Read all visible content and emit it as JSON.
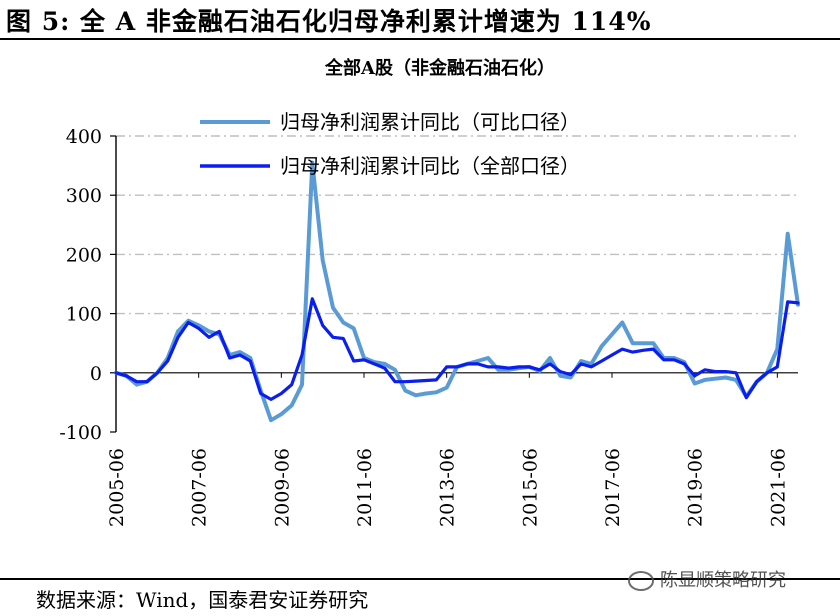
{
  "figure": {
    "title": "图 5: 全 A 非金融石油石化归母净利累计增速为 114%",
    "source": "数据来源：Wind，国泰君安证券研究",
    "watermark": "陈显顺策略研究"
  },
  "colors": {
    "series_comparable": "#5B9BD5",
    "series_all": "#0A1EF0",
    "grid": "#BFBFBF"
  },
  "chart_data": {
    "type": "line",
    "title": "全部A股（非金融石油石化）",
    "xlabel": "",
    "ylabel": "",
    "ylim": [
      -100,
      400
    ],
    "yticks": [
      "400",
      "300",
      "200",
      "100",
      "0",
      "-100"
    ],
    "xticks": [
      "2005-06",
      "2007-06",
      "2009-06",
      "2011-06",
      "2013-06",
      "2015-06",
      "2017-06",
      "2019-06",
      "2021-06"
    ],
    "x_start": "2005-06",
    "x_end": "2021-06",
    "x_step": "quarter",
    "legend_position": "top-center",
    "series": [
      {
        "name": "归母净利润累计同比（可比口径）",
        "values": [
          0,
          -5,
          -20,
          -15,
          0,
          25,
          70,
          88,
          80,
          70,
          65,
          30,
          35,
          25,
          -30,
          -80,
          -70,
          -55,
          -20,
          355,
          190,
          110,
          85,
          75,
          25,
          18,
          15,
          5,
          -30,
          -38,
          -35,
          -33,
          -25,
          10,
          15,
          20,
          25,
          5,
          5,
          8,
          10,
          3,
          25,
          -5,
          -8,
          20,
          15,
          45,
          65,
          85,
          50,
          50,
          50,
          25,
          25,
          18,
          -18,
          -12,
          -10,
          -8,
          -12,
          -40,
          -15,
          0,
          40,
          235,
          115
        ]
      },
      {
        "name": "归母净利润累计同比（全部口径）",
        "values": [
          0,
          -5,
          -15,
          -15,
          0,
          20,
          60,
          85,
          75,
          60,
          70,
          25,
          30,
          20,
          -35,
          -45,
          -35,
          -20,
          30,
          125,
          80,
          60,
          58,
          20,
          22,
          15,
          8,
          -15,
          -15,
          -14,
          -13,
          -12,
          10,
          10,
          15,
          15,
          10,
          10,
          8,
          10,
          10,
          5,
          15,
          2,
          -3,
          15,
          10,
          20,
          30,
          40,
          35,
          38,
          40,
          22,
          22,
          15,
          -5,
          5,
          2,
          2,
          0,
          -42,
          -15,
          0,
          10,
          120,
          118
        ]
      }
    ]
  }
}
